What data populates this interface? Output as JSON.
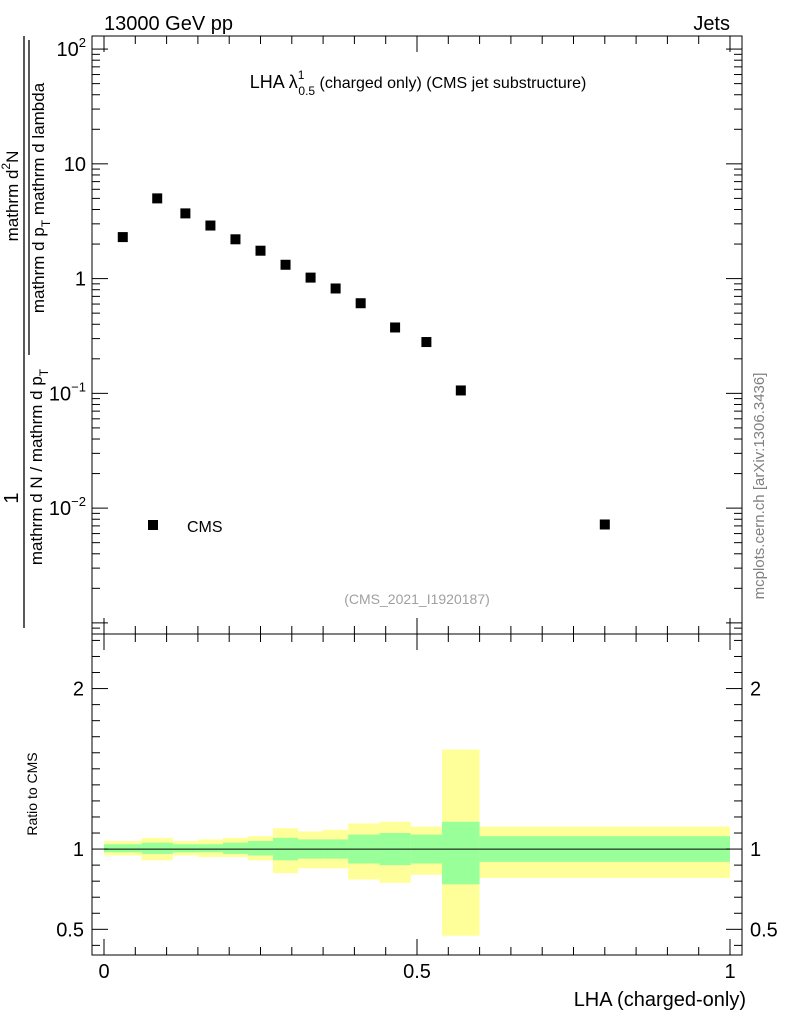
{
  "header": {
    "left": "13000 GeV pp",
    "right": "Jets"
  },
  "side_label": "mcplots.cern.ch [arXiv:1306.3436]",
  "reference": "(CMS_2021_I1920187)",
  "colors": {
    "band_inner": "#99ff99",
    "band_outer": "#ffff99",
    "marker": "#000000",
    "reference_text": "#a0a0a0",
    "side_text": "#808080"
  },
  "chart_data": [
    {
      "type": "scatter",
      "panel": "main",
      "title": {
        "main": "LHA λ",
        "sup": "1",
        "sub": "0.5",
        "rest": " (charged only) (CMS jet substructure)"
      },
      "ylabel": {
        "numerator": "1",
        "denominator": "mathrm d N / mathrm d p",
        "den_sub": "T",
        "numerator2": "mathrm d",
        "numerator2_sup": "2",
        "numerator2_rest": "N",
        "denominator2": "mathrm d p",
        "denominator2_sub": "T",
        "denominator2_rest": " mathrm d lambda"
      },
      "yscale": "log",
      "xlim": [
        0,
        1
      ],
      "ylim": [
        0.0008,
        130
      ],
      "yticks": [
        {
          "value": 0.01,
          "base": "10",
          "exp": "−2"
        },
        {
          "value": 0.1,
          "base": "10",
          "exp": "−1"
        },
        {
          "value": 1,
          "base": "1",
          "exp": ""
        },
        {
          "value": 10,
          "base": "10",
          "exp": ""
        },
        {
          "value": 100,
          "base": "10",
          "exp": "2"
        }
      ],
      "legend": {
        "label": "CMS",
        "position": "lower-left"
      },
      "series": [
        {
          "name": "CMS",
          "x": [
            0.03,
            0.085,
            0.13,
            0.17,
            0.21,
            0.25,
            0.29,
            0.33,
            0.37,
            0.41,
            0.465,
            0.515,
            0.57,
            0.8
          ],
          "y": [
            2.3,
            5.0,
            3.7,
            2.9,
            2.2,
            1.75,
            1.32,
            1.02,
            0.82,
            0.61,
            0.375,
            0.28,
            0.106,
            0.0072
          ]
        }
      ]
    },
    {
      "type": "area",
      "panel": "ratio",
      "xlabel": "LHA (charged-only)",
      "ylabel": "Ratio to CMS",
      "xlim": [
        0,
        1
      ],
      "ylim": [
        0.34,
        2.34
      ],
      "xticks": [
        {
          "value": 0,
          "label": "0"
        },
        {
          "value": 0.5,
          "label": "0.5"
        },
        {
          "value": 1,
          "label": "1"
        }
      ],
      "yticks": [
        {
          "value": 0.5,
          "label": "0.5"
        },
        {
          "value": 1,
          "label": "1"
        },
        {
          "value": 2,
          "label": "2"
        }
      ],
      "reference_line": 1,
      "bins": [
        0,
        0.06,
        0.11,
        0.15,
        0.19,
        0.23,
        0.27,
        0.31,
        0.35,
        0.39,
        0.44,
        0.49,
        0.54,
        0.6,
        1.0
      ],
      "inner_lo": [
        0.98,
        0.97,
        0.98,
        0.98,
        0.97,
        0.96,
        0.93,
        0.94,
        0.94,
        0.91,
        0.9,
        0.91,
        0.78,
        0.92
      ],
      "inner_hi": [
        1.03,
        1.04,
        1.03,
        1.03,
        1.04,
        1.05,
        1.07,
        1.06,
        1.06,
        1.09,
        1.1,
        1.09,
        1.17,
        1.08
      ],
      "outer_lo": [
        0.96,
        0.93,
        0.96,
        0.95,
        0.95,
        0.93,
        0.85,
        0.88,
        0.88,
        0.81,
        0.79,
        0.84,
        0.46,
        0.82
      ],
      "outer_hi": [
        1.05,
        1.07,
        1.05,
        1.06,
        1.07,
        1.08,
        1.13,
        1.11,
        1.12,
        1.16,
        1.17,
        1.14,
        1.62,
        1.14
      ]
    }
  ]
}
